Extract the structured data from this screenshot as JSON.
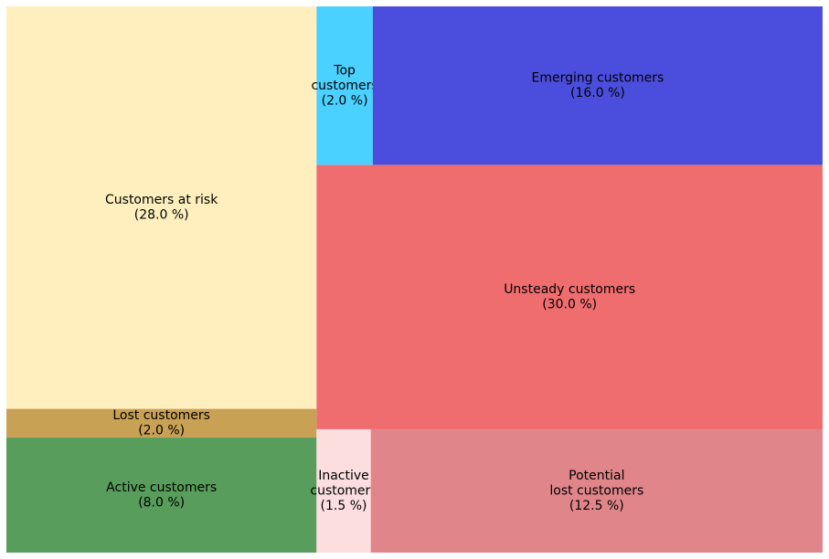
{
  "chart_data": {
    "type": "treemap",
    "title": "",
    "cells": [
      {
        "name": "Customers at risk",
        "display": [
          "Customers at risk"
        ],
        "value": 28.0,
        "pct_label": "(28.0 %)",
        "color": "#FFEFBE"
      },
      {
        "name": "Lost customers",
        "display": [
          "Lost customers"
        ],
        "value": 2.0,
        "pct_label": "(2.0 %)",
        "color": "#C9A154"
      },
      {
        "name": "Active customers",
        "display": [
          "Active customers"
        ],
        "value": 8.0,
        "pct_label": "(8.0 %)",
        "color": "#589D5B"
      },
      {
        "name": "Top customers",
        "display": [
          "Top",
          "customers"
        ],
        "value": 2.0,
        "pct_label": "(2.0 %)",
        "color": "#4BD1FF"
      },
      {
        "name": "Emerging customers",
        "display": [
          "Emerging customers"
        ],
        "value": 16.0,
        "pct_label": "(16.0 %)",
        "color": "#4B4EDD"
      },
      {
        "name": "Unsteady customers",
        "display": [
          "Unsteady customers"
        ],
        "value": 30.0,
        "pct_label": "(30.0 %)",
        "color": "#F06D6F"
      },
      {
        "name": "Inactive customers",
        "display": [
          "Inactive",
          "customers"
        ],
        "value": 1.5,
        "pct_label": "(1.5 %)",
        "color": "#FCDEDF"
      },
      {
        "name": "Potential lost customers",
        "display": [
          "Potential",
          "lost customers"
        ],
        "value": 12.5,
        "pct_label": "(12.5 %)",
        "color": "#E0868A"
      }
    ]
  }
}
